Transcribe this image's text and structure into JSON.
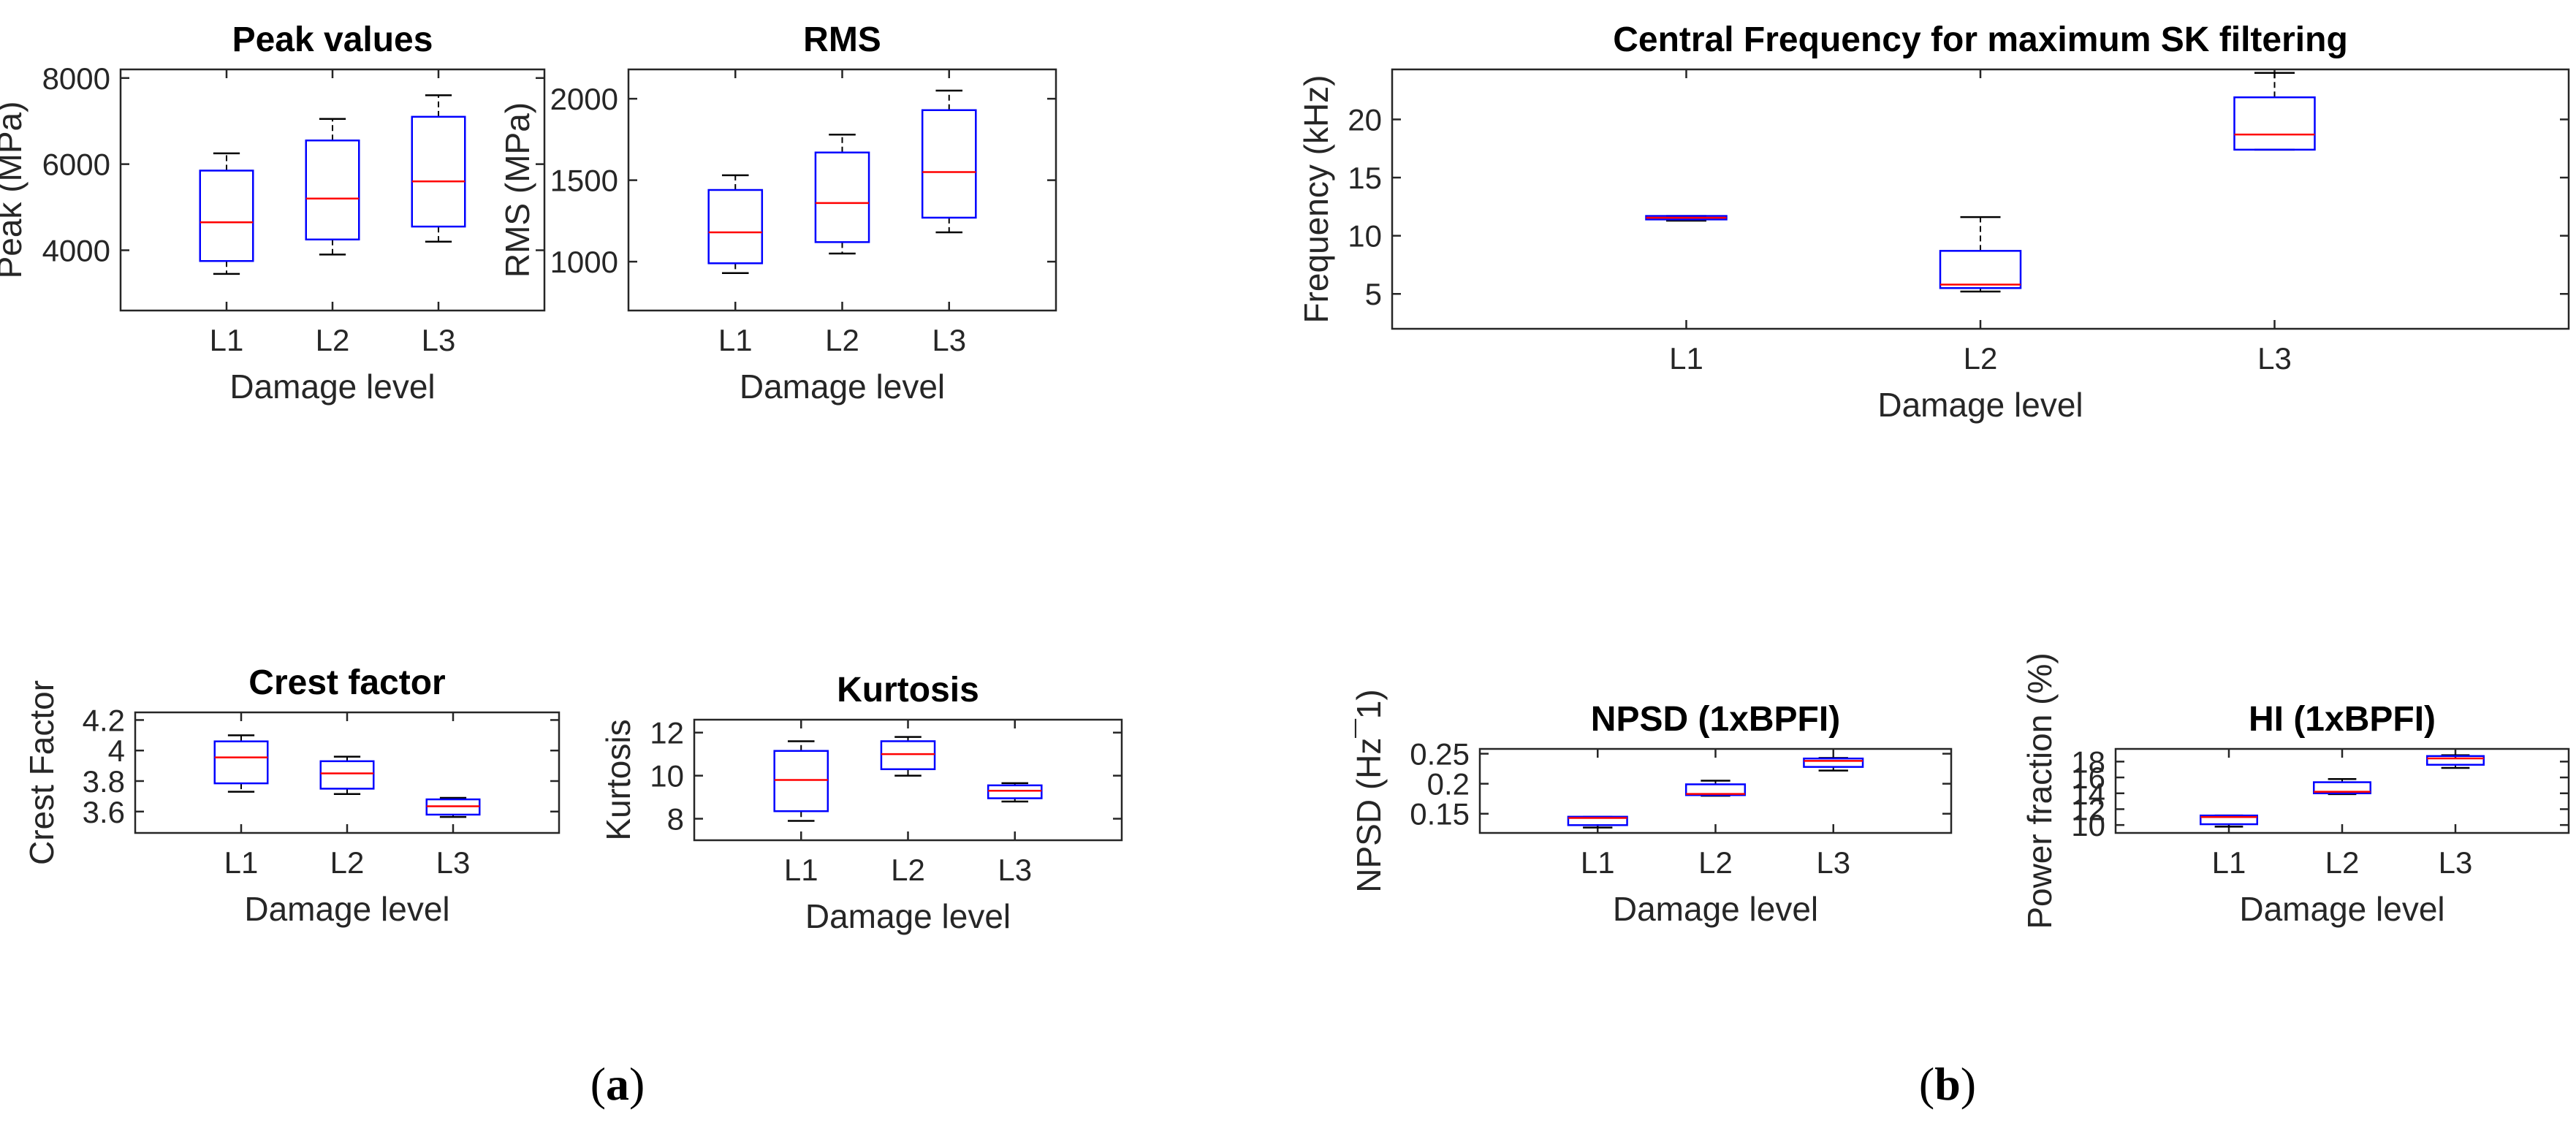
{
  "panels": [
    {
      "id": "a",
      "label_open": "(",
      "label_letter": "a",
      "label_close": ")"
    },
    {
      "id": "b",
      "label_open": "(",
      "label_letter": "b",
      "label_close": ")"
    }
  ],
  "colors": {
    "box": "#0000ff",
    "median": "#ff0000",
    "whisker": "#000000",
    "axes": "#262626"
  },
  "chart_data": [
    {
      "id": "peak",
      "type": "box",
      "title": "Peak values",
      "xlabel": "Damage level",
      "ylabel": "Peak (MPa)",
      "categories": [
        "L1",
        "L2",
        "L3"
      ],
      "ylim": [
        2600,
        8200
      ],
      "yticks": [
        4000,
        6000,
        8000
      ],
      "ytick_labels": [
        "4000",
        "6000",
        "8000"
      ],
      "boxes": [
        {
          "min": 3450,
          "q1": 3750,
          "median": 4650,
          "q3": 5850,
          "max": 6250
        },
        {
          "min": 3900,
          "q1": 4250,
          "median": 5200,
          "q3": 6550,
          "max": 7050
        },
        {
          "min": 4200,
          "q1": 4550,
          "median": 5600,
          "q3": 7100,
          "max": 7600
        }
      ]
    },
    {
      "id": "rms",
      "type": "box",
      "title": "RMS",
      "xlabel": "Damage level",
      "ylabel": "RMS (MPa)",
      "categories": [
        "L1",
        "L2",
        "L3"
      ],
      "ylim": [
        700,
        2180
      ],
      "yticks": [
        1000,
        1500,
        2000
      ],
      "ytick_labels": [
        "1000",
        "1500",
        "2000"
      ],
      "boxes": [
        {
          "min": 930,
          "q1": 990,
          "median": 1180,
          "q3": 1440,
          "max": 1530
        },
        {
          "min": 1050,
          "q1": 1120,
          "median": 1360,
          "q3": 1670,
          "max": 1780
        },
        {
          "min": 1180,
          "q1": 1270,
          "median": 1550,
          "q3": 1930,
          "max": 2050
        }
      ]
    },
    {
      "id": "central-frequency",
      "type": "box",
      "title": "Central Frequency for maximum SK filtering",
      "xlabel": "Damage level",
      "ylabel": "Frequency (kHz)",
      "categories": [
        "L1",
        "L2",
        "L3"
      ],
      "ylim": [
        2,
        24.3
      ],
      "yticks": [
        5,
        10,
        15,
        20
      ],
      "ytick_labels": [
        "5",
        "10",
        "15",
        "20"
      ],
      "boxes": [
        {
          "min": 11.3,
          "q1": 11.4,
          "median": 11.55,
          "q3": 11.7,
          "max": 11.7
        },
        {
          "min": 5.2,
          "q1": 5.5,
          "median": 5.8,
          "q3": 8.7,
          "max": 11.6
        },
        {
          "min": 17.4,
          "q1": 17.4,
          "median": 18.7,
          "q3": 21.9,
          "max": 24.0
        }
      ]
    },
    {
      "id": "crest-factor",
      "type": "box",
      "title": "Crest factor",
      "xlabel": "Damage level",
      "ylabel": "Crest Factor",
      "categories": [
        "L1",
        "L2",
        "L3"
      ],
      "ylim": [
        3.46,
        4.25
      ],
      "yticks": [
        3.6,
        3.8,
        4.0,
        4.2
      ],
      "ytick_labels": [
        "3.6",
        "3.8",
        "4",
        "4.2"
      ],
      "boxes": [
        {
          "min": 3.73,
          "q1": 3.785,
          "median": 3.955,
          "q3": 4.06,
          "max": 4.1
        },
        {
          "min": 3.715,
          "q1": 3.75,
          "median": 3.85,
          "q3": 3.93,
          "max": 3.96
        },
        {
          "min": 3.565,
          "q1": 3.58,
          "median": 3.635,
          "q3": 3.68,
          "max": 3.69
        }
      ]
    },
    {
      "id": "kurtosis",
      "type": "box",
      "title": "Kurtosis",
      "xlabel": "Damage level",
      "ylabel": "Kurtosis",
      "categories": [
        "L1",
        "L2",
        "L3"
      ],
      "ylim": [
        7.0,
        12.6
      ],
      "yticks": [
        8,
        10,
        12
      ],
      "ytick_labels": [
        "8",
        "10",
        "12"
      ],
      "boxes": [
        {
          "min": 7.9,
          "q1": 8.35,
          "median": 9.8,
          "q3": 11.15,
          "max": 11.6
        },
        {
          "min": 10.0,
          "q1": 10.3,
          "median": 11.0,
          "q3": 11.6,
          "max": 11.8
        },
        {
          "min": 8.8,
          "q1": 8.95,
          "median": 9.3,
          "q3": 9.55,
          "max": 9.65
        }
      ]
    },
    {
      "id": "npsd",
      "type": "box",
      "title": "NPSD (1xBPFI)",
      "xlabel": "Damage level",
      "ylabel": "NPSD (Hz¯1)",
      "categories": [
        "L1",
        "L2",
        "L3"
      ],
      "ylim": [
        0.118,
        0.258
      ],
      "yticks": [
        0.15,
        0.2,
        0.25
      ],
      "ytick_labels": [
        "0.15",
        "0.2",
        "0.25"
      ],
      "boxes": [
        {
          "min": 0.127,
          "q1": 0.131,
          "median": 0.143,
          "q3": 0.145,
          "max": 0.145
        },
        {
          "min": 0.18,
          "q1": 0.181,
          "median": 0.183,
          "q3": 0.199,
          "max": 0.205
        },
        {
          "min": 0.222,
          "q1": 0.228,
          "median": 0.238,
          "q3": 0.242,
          "max": 0.243
        }
      ]
    },
    {
      "id": "hi",
      "type": "box",
      "title": "HI (1xBPFI)",
      "xlabel": "Damage level",
      "ylabel": "Power fraction (%)",
      "categories": [
        "L1",
        "L2",
        "L3"
      ],
      "ylim": [
        9.0,
        19.6
      ],
      "yticks": [
        10,
        12,
        14,
        16,
        18
      ],
      "ytick_labels": [
        "10",
        "12",
        "14",
        "16",
        "18"
      ],
      "boxes": [
        {
          "min": 9.8,
          "q1": 10.1,
          "median": 11.0,
          "q3": 11.2,
          "max": 11.2
        },
        {
          "min": 13.9,
          "q1": 14.0,
          "median": 14.2,
          "q3": 15.4,
          "max": 15.8
        },
        {
          "min": 17.2,
          "q1": 17.6,
          "median": 18.4,
          "q3": 18.7,
          "max": 18.8
        }
      ]
    }
  ]
}
